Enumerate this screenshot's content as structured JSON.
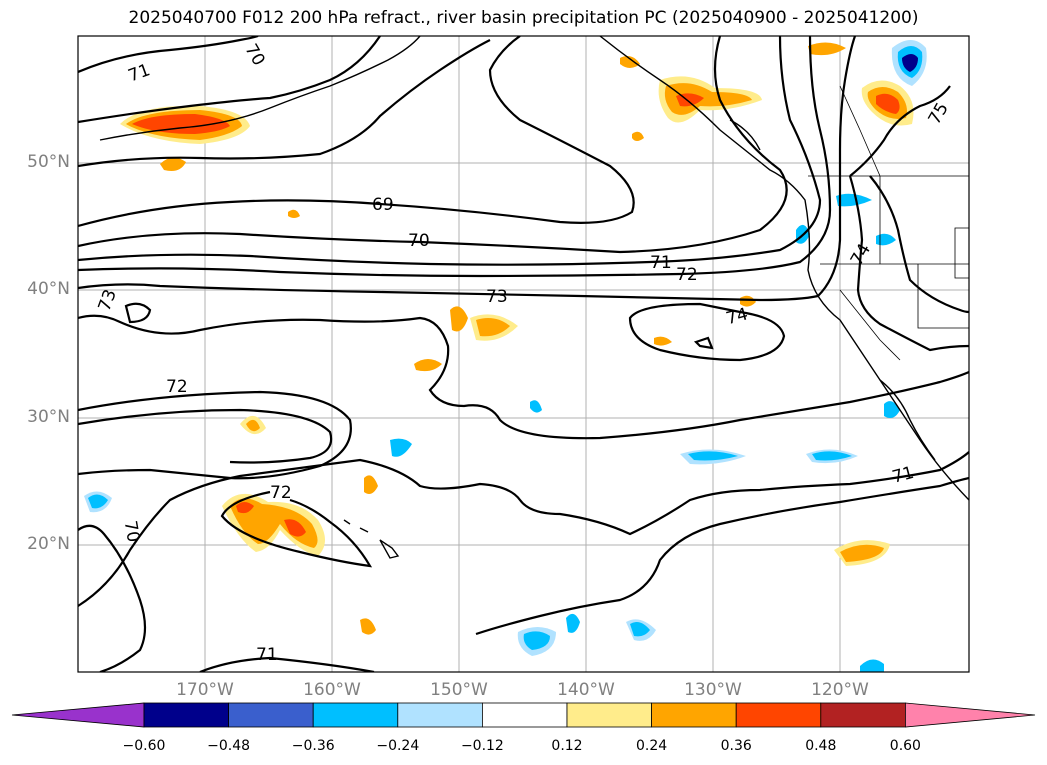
{
  "title": "2025040700 F012 200 hPa refract., river basin precipitation PC (2025040900 - 2025041200)",
  "lat_labels": [
    "50°N",
    "40°N",
    "30°N",
    "20°N"
  ],
  "lon_labels": [
    "170°W",
    "160°W",
    "150°W",
    "140°W",
    "130°W",
    "120°W"
  ],
  "colorbar": {
    "colors": [
      "#9932cc",
      "#00008b",
      "#3a5fcd",
      "#00bfff",
      "#b0e2ff",
      "#ffffff",
      "#ffec8b",
      "#ffa500",
      "#ff4500",
      "#b22222",
      "#ff82ab"
    ],
    "tick_labels": [
      "−0.60",
      "−0.48",
      "−0.36",
      "−0.24",
      "−0.12",
      "0.12",
      "0.24",
      "0.36",
      "0.48",
      "0.60"
    ]
  },
  "contour_labels": [
    "71",
    "70",
    "69",
    "70",
    "71",
    "72",
    "73",
    "73",
    "74",
    "72",
    "72",
    "70",
    "71",
    "71",
    "74",
    "75"
  ],
  "colors": {
    "contour": "#000000",
    "grid": "#b0b0b0",
    "axis_text": "#808080"
  }
}
